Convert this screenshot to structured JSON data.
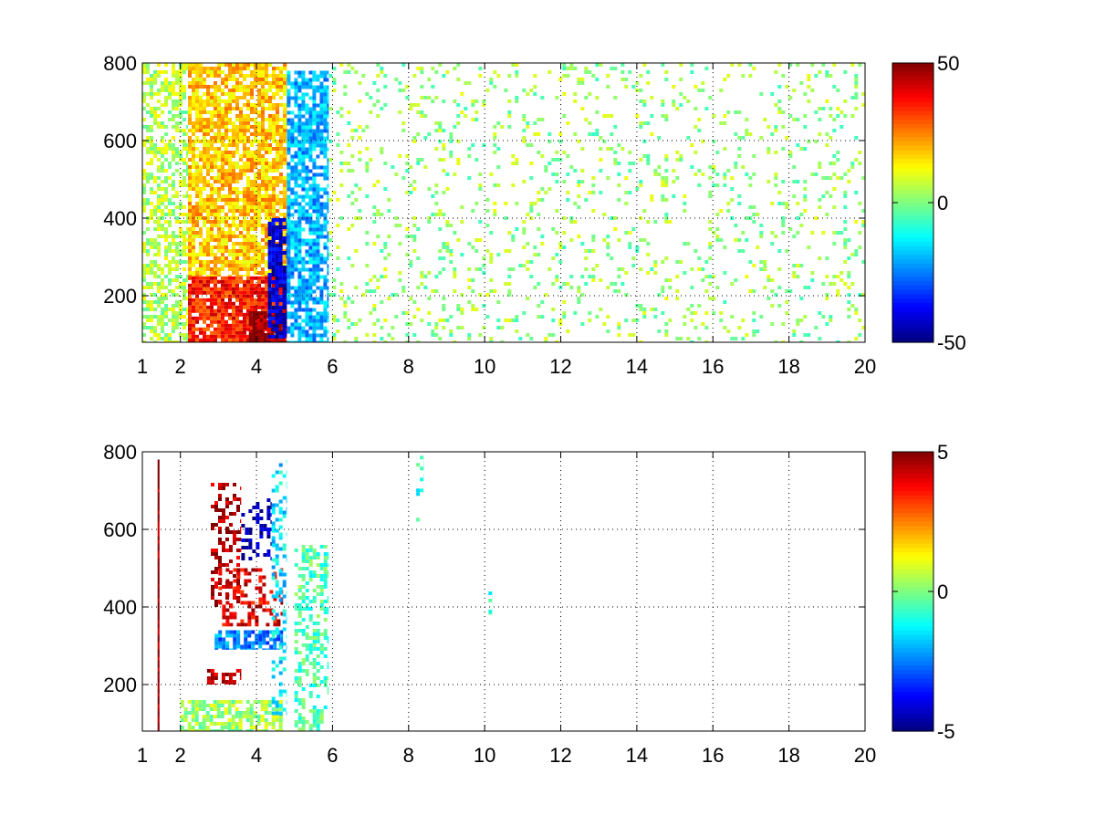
{
  "chart_data": [
    {
      "type": "heatmap",
      "title": "",
      "xlabel": "",
      "ylabel": "",
      "xlim": [
        1,
        20
      ],
      "ylim": [
        80,
        800
      ],
      "x_ticks": [
        1,
        2,
        4,
        6,
        8,
        10,
        12,
        14,
        16,
        18,
        20
      ],
      "x_tick_labels": [
        "1",
        "2",
        "4",
        "6",
        "8",
        "10",
        "12",
        "14",
        "16",
        "18",
        "20"
      ],
      "y_ticks": [
        200,
        400,
        600,
        800
      ],
      "y_tick_labels": [
        "200",
        "400",
        "600",
        "800"
      ],
      "grid": true,
      "colormap": "jet",
      "clim": [
        -50,
        50
      ],
      "colorbar_ticks": [
        50,
        0,
        -50
      ],
      "colorbar_tick_labels": [
        "50",
        "0",
        "-50"
      ],
      "background_color": "#ffffff",
      "regions": [
        {
          "x": [
            1.0,
            2.2
          ],
          "y": [
            80,
            800
          ],
          "value": 5,
          "density": 0.55
        },
        {
          "x": [
            2.2,
            4.8
          ],
          "y": [
            250,
            800
          ],
          "value": 18,
          "density": 0.8
        },
        {
          "x": [
            2.2,
            4.8
          ],
          "y": [
            80,
            250
          ],
          "value": 35,
          "density": 0.9
        },
        {
          "x": [
            3.8,
            4.8
          ],
          "y": [
            80,
            160
          ],
          "value": 48,
          "density": 0.95
        },
        {
          "x": [
            4.3,
            4.8
          ],
          "y": [
            90,
            400
          ],
          "value": -42,
          "density": 0.8
        },
        {
          "x": [
            4.8,
            5.9
          ],
          "y": [
            80,
            780
          ],
          "value": -20,
          "density": 0.75
        },
        {
          "x": [
            5.9,
            20.0
          ],
          "y": [
            80,
            800
          ],
          "value": 2,
          "density": 0.12
        }
      ]
    },
    {
      "type": "heatmap",
      "title": "",
      "xlabel": "",
      "ylabel": "",
      "xlim": [
        1,
        20
      ],
      "ylim": [
        80,
        800
      ],
      "x_ticks": [
        1,
        2,
        4,
        6,
        8,
        10,
        12,
        14,
        16,
        18,
        20
      ],
      "x_tick_labels": [
        "1",
        "2",
        "4",
        "6",
        "8",
        "10",
        "12",
        "14",
        "16",
        "18",
        "20"
      ],
      "y_ticks": [
        200,
        400,
        600,
        800
      ],
      "y_tick_labels": [
        "200",
        "400",
        "600",
        "800"
      ],
      "grid": true,
      "colormap": "jet",
      "clim": [
        -5,
        5
      ],
      "colorbar_ticks": [
        5,
        0,
        -5
      ],
      "colorbar_tick_labels": [
        "5",
        "0",
        "-5"
      ],
      "background_color": "#ffffff",
      "regions": [
        {
          "x": [
            1.4,
            1.45
          ],
          "y": [
            80,
            780
          ],
          "value": 5,
          "density": 1.0
        },
        {
          "x": [
            2.8,
            3.6
          ],
          "y": [
            400,
            720
          ],
          "value": 4.5,
          "density": 0.35
        },
        {
          "x": [
            3.6,
            4.4
          ],
          "y": [
            520,
            680
          ],
          "value": -4.5,
          "density": 0.4
        },
        {
          "x": [
            3.0,
            4.7
          ],
          "y": [
            350,
            500
          ],
          "value": 4,
          "density": 0.35
        },
        {
          "x": [
            2.9,
            4.7
          ],
          "y": [
            290,
            340
          ],
          "value": -2.5,
          "density": 0.8
        },
        {
          "x": [
            2.7,
            3.6
          ],
          "y": [
            200,
            240
          ],
          "value": 4.5,
          "density": 0.5
        },
        {
          "x": [
            2.0,
            4.7
          ],
          "y": [
            80,
            160
          ],
          "value": 0.3,
          "density": 0.7
        },
        {
          "x": [
            4.4,
            4.8
          ],
          "y": [
            120,
            780
          ],
          "value": -1.5,
          "density": 0.35
        },
        {
          "x": [
            5.0,
            5.9
          ],
          "y": [
            80,
            560
          ],
          "value": -0.5,
          "density": 0.45
        },
        {
          "x": [
            8.2,
            8.4
          ],
          "y": [
            620,
            790
          ],
          "value": -1,
          "density": 0.25
        },
        {
          "x": [
            10.1,
            10.2
          ],
          "y": [
            380,
            440
          ],
          "value": -1,
          "density": 0.6
        }
      ]
    }
  ]
}
